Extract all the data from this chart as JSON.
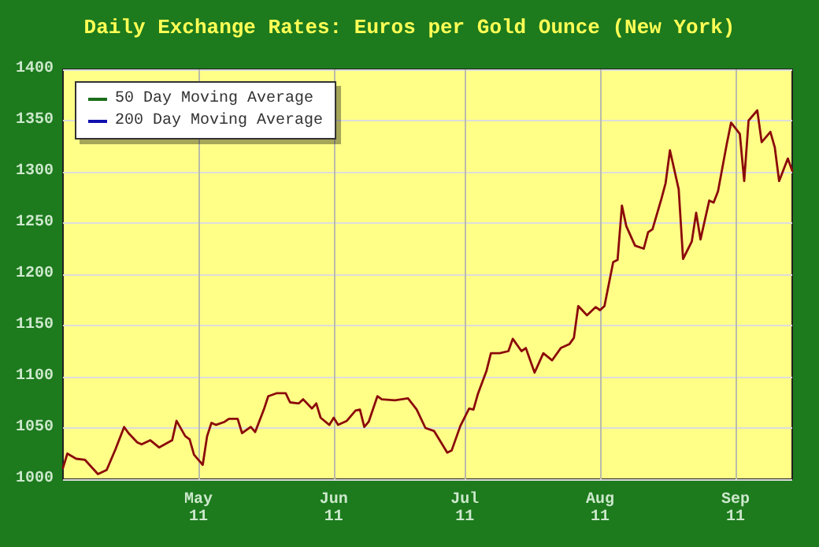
{
  "chart_data": {
    "type": "line",
    "title": "Daily Exchange Rates: Euros per Gold Ounce (New York)",
    "x": [
      "2011-03-31",
      "2011-04-01",
      "2011-04-03",
      "2011-04-05",
      "2011-04-08",
      "2011-04-10",
      "2011-04-12",
      "2011-04-14",
      "2011-04-15",
      "2011-04-17",
      "2011-04-18",
      "2011-04-20",
      "2011-04-22",
      "2011-04-25",
      "2011-04-26",
      "2011-04-28",
      "2011-04-29",
      "2011-04-30",
      "2011-05-02",
      "2011-05-03",
      "2011-05-04",
      "2011-05-05",
      "2011-05-07",
      "2011-05-08",
      "2011-05-10",
      "2011-05-11",
      "2011-05-13",
      "2011-05-14",
      "2011-05-16",
      "2011-05-17",
      "2011-05-19",
      "2011-05-21",
      "2011-05-22",
      "2011-05-24",
      "2011-05-25",
      "2011-05-27",
      "2011-05-28",
      "2011-05-29",
      "2011-05-31",
      "2011-06-01",
      "2011-06-02",
      "2011-06-04",
      "2011-06-06",
      "2011-06-07",
      "2011-06-08",
      "2011-06-09",
      "2011-06-11",
      "2011-06-12",
      "2011-06-15",
      "2011-06-18",
      "2011-06-20",
      "2011-06-22",
      "2011-06-24",
      "2011-06-27",
      "2011-06-28",
      "2011-06-30",
      "2011-07-02",
      "2011-07-03",
      "2011-07-04",
      "2011-07-06",
      "2011-07-07",
      "2011-07-09",
      "2011-07-11",
      "2011-07-12",
      "2011-07-14",
      "2011-07-15",
      "2011-07-17",
      "2011-07-19",
      "2011-07-21",
      "2011-07-23",
      "2011-07-25",
      "2011-07-26",
      "2011-07-27",
      "2011-07-29",
      "2011-07-31",
      "2011-08-01",
      "2011-08-02",
      "2011-08-04",
      "2011-08-05",
      "2011-08-06",
      "2011-08-07",
      "2011-08-09",
      "2011-08-11",
      "2011-08-12",
      "2011-08-13",
      "2011-08-15",
      "2011-08-16",
      "2011-08-17",
      "2011-08-19",
      "2011-08-20",
      "2011-08-22",
      "2011-08-23",
      "2011-08-24",
      "2011-08-26",
      "2011-08-27",
      "2011-08-28",
      "2011-08-30",
      "2011-08-31",
      "2011-09-02",
      "2011-09-03",
      "2011-09-04",
      "2011-09-06",
      "2011-09-07",
      "2011-09-09",
      "2011-09-10",
      "2011-09-11",
      "2011-09-13",
      "2011-09-14"
    ],
    "series": [
      {
        "color": "#8b0a0a",
        "values": [
          1011,
          1025,
          1020,
          1019,
          1005,
          1009,
          1029,
          1051,
          1045,
          1036,
          1034,
          1038,
          1031,
          1038,
          1057,
          1042,
          1039,
          1024,
          1014,
          1042,
          1055,
          1053,
          1056,
          1059,
          1059,
          1045,
          1051,
          1046,
          1068,
          1081,
          1084,
          1084,
          1075,
          1074,
          1078,
          1069,
          1074,
          1060,
          1053,
          1060,
          1053,
          1057,
          1067,
          1068,
          1051,
          1056,
          1081,
          1078,
          1077,
          1079,
          1068,
          1050,
          1047,
          1026,
          1028,
          1052,
          1069,
          1068,
          1083,
          1106,
          1123,
          1123,
          1125,
          1137,
          1125,
          1128,
          1104,
          1123,
          1116,
          1128,
          1132,
          1138,
          1169,
          1160,
          1168,
          1165,
          1169,
          1212,
          1214,
          1267,
          1247,
          1228,
          1225,
          1241,
          1244,
          1273,
          1289,
          1321,
          1283,
          1215,
          1232,
          1260,
          1234,
          1272,
          1270,
          1281,
          1327,
          1348,
          1337,
          1291,
          1350,
          1360,
          1329,
          1339,
          1324,
          1291,
          1313,
          1301
        ]
      },
      {
        "name": "50 Day Moving Average",
        "color": "#1a6e1a",
        "values": [
          null,
          null,
          null,
          null,
          null,
          null,
          null,
          null,
          null,
          null,
          null,
          null,
          null,
          null,
          null,
          null,
          null,
          null,
          null,
          null,
          null,
          null,
          null,
          null,
          null,
          null,
          null,
          null,
          null,
          null,
          null,
          null,
          null,
          null,
          null,
          null,
          null,
          null,
          null,
          null,
          null,
          null,
          null,
          null,
          null,
          null,
          null,
          null,
          null,
          null,
          null,
          null,
          null,
          null,
          null,
          null,
          null,
          null,
          null,
          null,
          null,
          null,
          null,
          null,
          null,
          null,
          null,
          null,
          null,
          null,
          null,
          null,
          null,
          null,
          null,
          null,
          null,
          null,
          null,
          null,
          null,
          null,
          null,
          null,
          null,
          null,
          null,
          null,
          null,
          null,
          null,
          null,
          null,
          null,
          null,
          null,
          null,
          null,
          null,
          null,
          null,
          null,
          null,
          null,
          null,
          null,
          null,
          null
        ]
      },
      {
        "name": "200 Day Moving Average",
        "color": "#1010b0",
        "values": [
          null,
          null,
          null,
          null,
          null,
          null,
          null,
          null,
          null,
          null,
          null,
          null,
          null,
          null,
          null,
          null,
          null,
          null,
          null,
          null,
          null,
          null,
          null,
          null,
          null,
          null,
          null,
          null,
          null,
          null,
          null,
          null,
          null,
          null,
          null,
          null,
          null,
          null,
          null,
          null,
          null,
          null,
          null,
          null,
          null,
          null,
          null,
          null,
          null,
          null,
          null,
          null,
          null,
          null,
          null,
          null,
          null,
          null,
          null,
          null,
          null,
          null,
          null,
          null,
          null,
          null,
          null,
          null,
          null,
          null,
          null,
          null,
          null,
          null,
          null,
          null,
          null,
          null,
          null,
          null,
          null,
          null,
          null,
          null,
          null,
          null,
          null,
          null,
          null,
          null,
          null,
          null,
          null,
          null,
          null,
          null,
          null,
          null,
          null,
          null,
          null,
          null,
          null,
          null,
          null,
          null,
          null,
          null
        ]
      }
    ],
    "xlim": [
      "2011-03-31",
      "2011-09-14"
    ],
    "xticks": [
      {
        "value": "2011-05-01",
        "label": "May\n11"
      },
      {
        "value": "2011-06-01",
        "label": "Jun\n11"
      },
      {
        "value": "2011-07-01",
        "label": "Jul\n11"
      },
      {
        "value": "2011-08-01",
        "label": "Aug\n11"
      },
      {
        "value": "2011-09-01",
        "label": "Sep\n11"
      }
    ],
    "ylim": [
      1000,
      1400
    ],
    "yticks": [
      1000,
      1050,
      1100,
      1150,
      1200,
      1250,
      1300,
      1350,
      1400
    ],
    "grid": true,
    "legend": "top left",
    "marker": "none",
    "line_style": "solid"
  }
}
